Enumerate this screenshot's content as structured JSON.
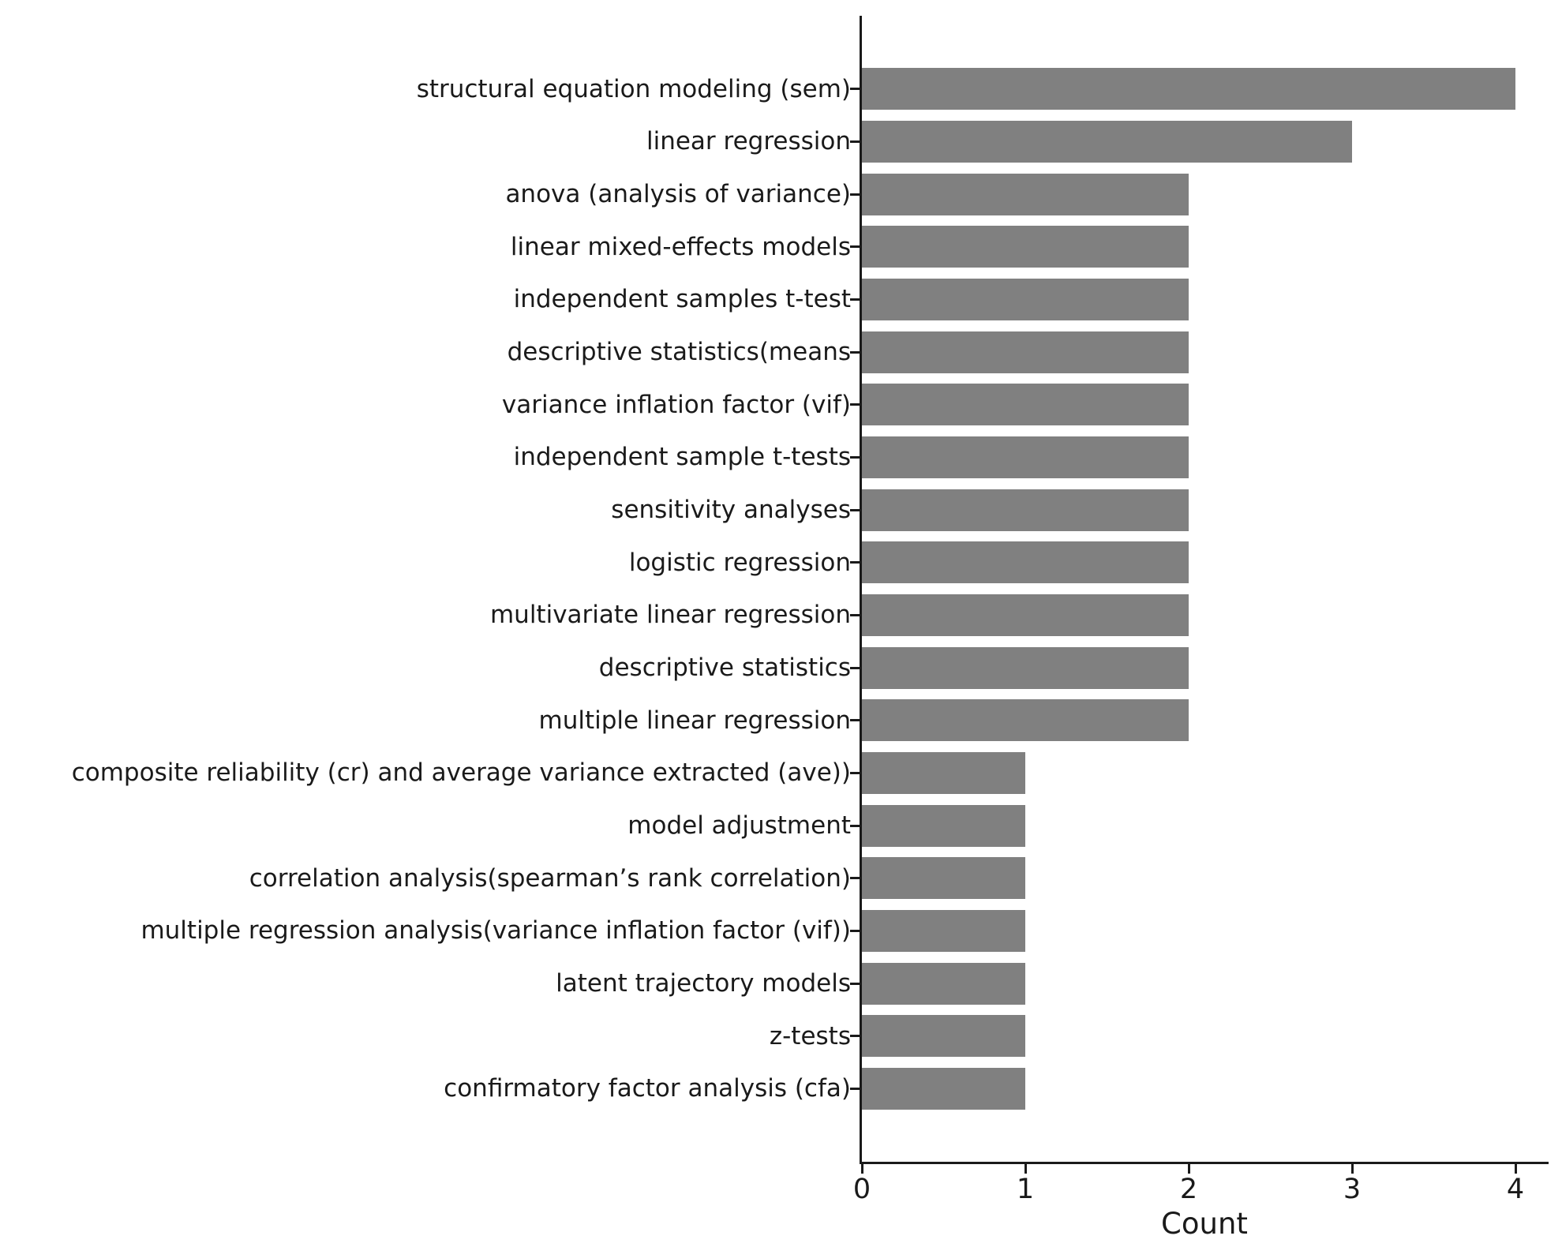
{
  "chart_data": {
    "type": "bar",
    "orientation": "horizontal",
    "title": "",
    "xlabel": "Count",
    "ylabel": "",
    "categories": [
      "structural equation modeling (sem)",
      "linear regression",
      "anova (analysis of variance)",
      "linear mixed-effects models",
      "independent samples t-test",
      "descriptive statistics(means",
      "variance inflation factor (vif)",
      "independent sample t-tests",
      "sensitivity analyses",
      "logistic regression",
      "multivariate linear regression",
      "descriptive statistics",
      "multiple linear regression",
      "composite reliability (cr) and average variance extracted (ave))",
      "model adjustment",
      "correlation analysis(spearman’s rank correlation)",
      "multiple regression analysis(variance inflation factor (vif))",
      "latent trajectory models",
      "z-tests",
      "confirmatory factor analysis (cfa)"
    ],
    "values": [
      4,
      3,
      2,
      2,
      2,
      2,
      2,
      2,
      2,
      2,
      2,
      2,
      2,
      1,
      1,
      1,
      1,
      1,
      1,
      1
    ],
    "x_ticks": [
      0,
      1,
      2,
      3,
      4
    ],
    "xlim": [
      0,
      4.2
    ],
    "grid": false,
    "legend": null,
    "bar_color": "#808080",
    "axis_color": "#1a1a1a",
    "text_color": "#1a1a1a"
  }
}
